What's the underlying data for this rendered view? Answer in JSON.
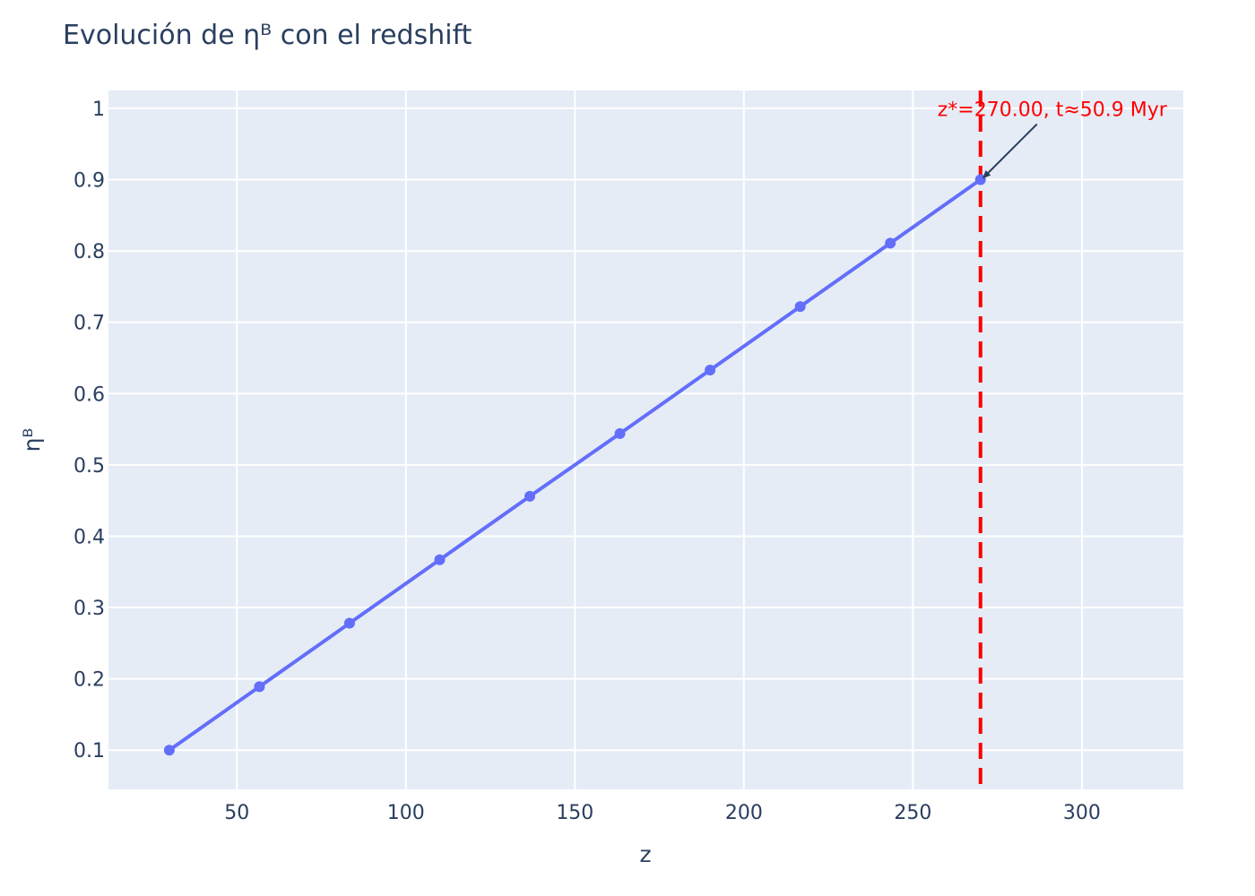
{
  "chart_data": {
    "type": "line",
    "title": "Evolución de ηᴮ con el redshift",
    "xlabel": "z",
    "ylabel": "ηᴮ",
    "xlim": [
      12,
      330
    ],
    "ylim": [
      0.045,
      1.025
    ],
    "x_ticks": [
      50,
      100,
      150,
      200,
      250,
      300
    ],
    "y_ticks": [
      0.1,
      0.2,
      0.3,
      0.4,
      0.5,
      0.6,
      0.7,
      0.8,
      0.9,
      1
    ],
    "y_tick_labels": [
      "0.1",
      "0.2",
      "0.3",
      "0.4",
      "0.5",
      "0.6",
      "0.7",
      "0.8",
      "0.9",
      "1"
    ],
    "grid": true,
    "series": [
      {
        "x": [
          30,
          56.67,
          83.33,
          110,
          136.67,
          163.33,
          190,
          216.67,
          243.33,
          270
        ],
        "y": [
          0.1,
          0.189,
          0.278,
          0.367,
          0.456,
          0.544,
          0.633,
          0.722,
          0.811,
          0.9
        ],
        "color": "#636efa",
        "mode": "lines+markers"
      }
    ],
    "vline": {
      "x": 270,
      "color": "#ff0000",
      "dash": "dash"
    },
    "annotation": {
      "text": "z*=270.00, t≈50.9 Myr",
      "x": 270,
      "y": 0.9,
      "color": "#ff0000",
      "arrow_color": "#2a3f5f"
    },
    "colors": {
      "plot_bg": "#e5ecf6",
      "grid": "#ffffff",
      "text": "#2a3f5f"
    }
  }
}
